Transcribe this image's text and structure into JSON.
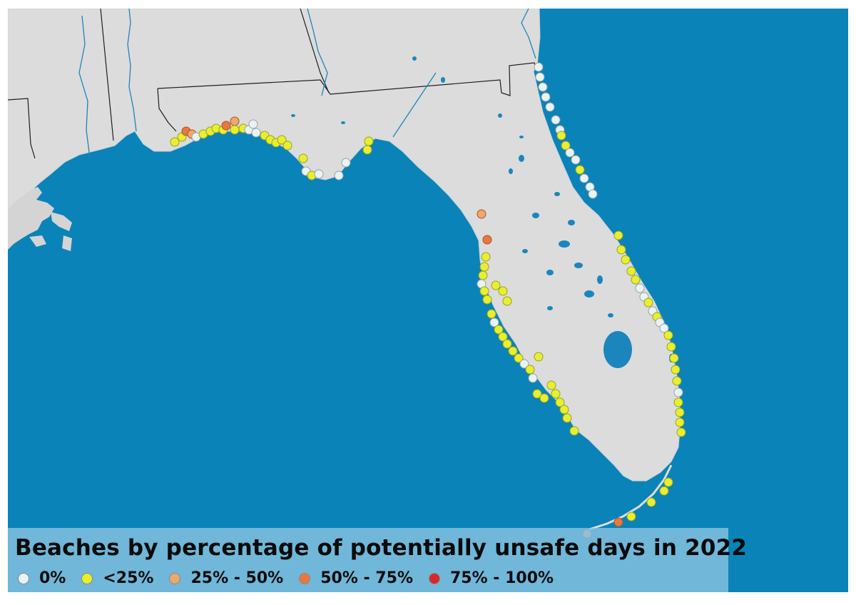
{
  "legend": {
    "title": "Beaches by percentage of potentially unsafe days in 2022",
    "categories": [
      {
        "label": "0%",
        "color": "#e8f3f4"
      },
      {
        "label": "<25%",
        "color": "#e8ef2e"
      },
      {
        "label": "25% - 50%",
        "color": "#eda86c"
      },
      {
        "label": "50% - 75%",
        "color": "#e8783e"
      },
      {
        "label": "75% - 100%",
        "color": "#d8272a"
      }
    ]
  },
  "colors": {
    "water": "#0a83b8",
    "land": "#dcdcdc",
    "inland_water": "#1a86bd",
    "state_border": "#1e1e1e"
  }
}
